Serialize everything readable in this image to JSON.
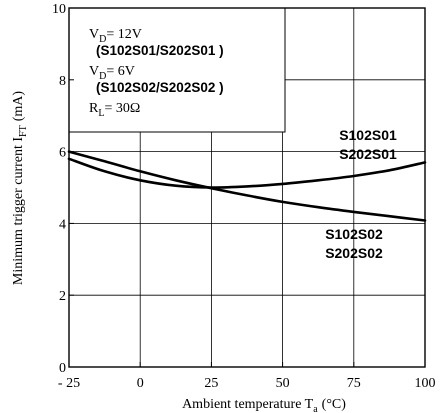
{
  "chart_data": {
    "type": "line",
    "xlabel_main": "Ambient temperature T",
    "xlabel_sub": "a",
    "xlabel_unit": "(°C)",
    "ylabel_main": "Minimum trigger current I",
    "ylabel_sub": "FT",
    "ylabel_unit": "(mA)",
    "xlim": [
      -25,
      100
    ],
    "ylim": [
      0,
      10
    ],
    "x_ticks": [
      {
        "value": -25,
        "label": "- 25"
      },
      {
        "value": 0,
        "label": "0"
      },
      {
        "value": 25,
        "label": "25"
      },
      {
        "value": 50,
        "label": "50"
      },
      {
        "value": 75,
        "label": "75"
      },
      {
        "value": 100,
        "label": "100"
      }
    ],
    "y_ticks": [
      {
        "value": 0,
        "label": "0"
      },
      {
        "value": 2,
        "label": "2"
      },
      {
        "value": 4,
        "label": "4"
      },
      {
        "value": 6,
        "label": "6"
      },
      {
        "value": 8,
        "label": "8"
      },
      {
        "value": 10,
        "label": "10"
      }
    ],
    "grid": true,
    "series": [
      {
        "name_line1": "S102S01",
        "name_line2": "S202S01",
        "x": [
          -25,
          -12.5,
          0,
          12.5,
          25,
          37.5,
          50,
          62.5,
          75,
          87.5,
          100
        ],
        "y": [
          5.8,
          5.45,
          5.2,
          5.05,
          5.0,
          5.03,
          5.1,
          5.2,
          5.32,
          5.48,
          5.7
        ]
      },
      {
        "name_line1": "S102S02",
        "name_line2": "S202S02",
        "x": [
          -25,
          -12.5,
          0,
          12.5,
          25,
          37.5,
          50,
          62.5,
          75,
          87.5,
          100
        ],
        "y": [
          6.0,
          5.73,
          5.45,
          5.2,
          4.98,
          4.78,
          4.6,
          4.45,
          4.32,
          4.2,
          4.08
        ]
      }
    ],
    "legend": {
      "line1_main": "V",
      "line1_sub": "D",
      "line1_rest": "= 12V",
      "line2": "(S102S01/S202S01 )",
      "line3_main": "V",
      "line3_sub": "D",
      "line3_rest": "= 6V",
      "line4": "(S102S02/S202S02 )",
      "line5_main": "R",
      "line5_sub": "L",
      "line5_rest": "= 30Ω"
    }
  }
}
